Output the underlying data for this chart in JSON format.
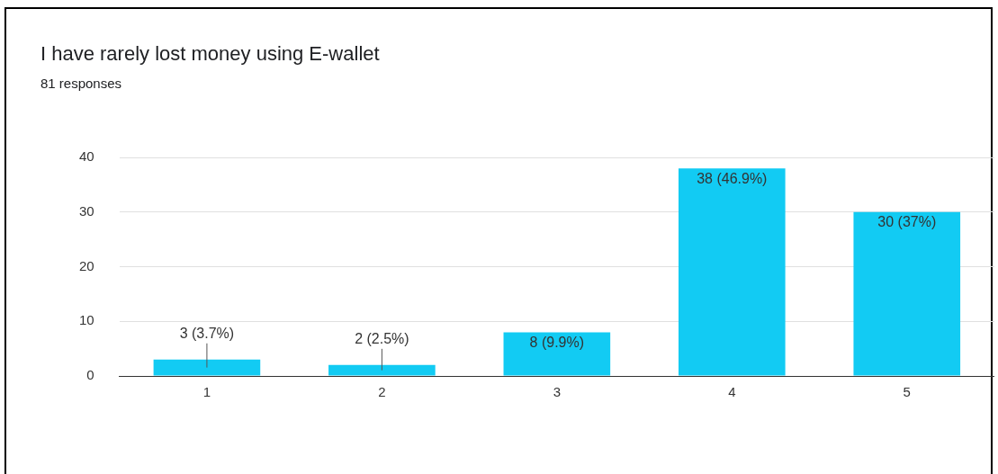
{
  "chart_data": {
    "type": "bar",
    "title": "I have rarely lost money using E-wallet",
    "subtitle": "81 responses",
    "categories": [
      "1",
      "2",
      "3",
      "4",
      "5"
    ],
    "values": [
      3,
      2,
      8,
      38,
      30
    ],
    "value_labels": [
      "3 (3.7%)",
      "2 (2.5%)",
      "8 (9.9%)",
      "38 (46.9%)",
      "30 (37%)"
    ],
    "color": "#12cbf3",
    "ylim": [
      0,
      40
    ],
    "yticks": [
      0,
      10,
      20,
      30,
      40
    ],
    "grid": "y",
    "legend": false
  }
}
